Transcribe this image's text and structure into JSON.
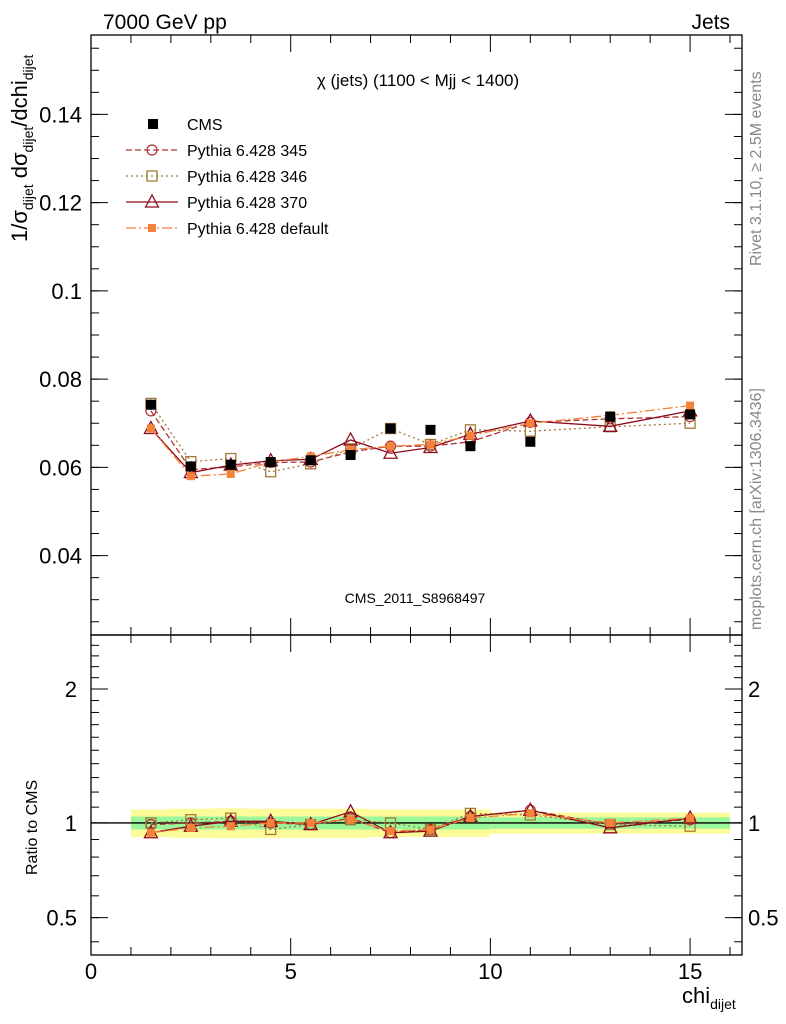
{
  "header": {
    "left": "7000 GeV pp",
    "right": "Jets"
  },
  "side_text": {
    "rivet": "Rivet 3.1.10, ≥ 2.5M events",
    "mcplots": "mcplots.cern.ch [arXiv:1306.3436]"
  },
  "watermark": "CMS_2011_S8968497",
  "colors": {
    "cms": "#000000",
    "p345": "#b2343a",
    "p346": "#a57936",
    "p370": "#8b0c1c",
    "pdef": "#f5823a",
    "band_inner": "#9af79a",
    "band_outer": "#fbfb9a"
  },
  "chart_data": [
    {
      "type": "line",
      "title": "χ (jets) (1100 < Mjj < 1400)",
      "xlabel": "chi_dijet",
      "ylabel": "1/σ_dijet dσ_dijet/dchi_dijet",
      "xlim": [
        0,
        16.3
      ],
      "ylim": [
        0.022,
        0.158
      ],
      "y_ticks": [
        "0.04",
        "0.06",
        "0.08",
        "0.1",
        "0.12",
        "0.14"
      ],
      "legend_position": "top-left",
      "x": [
        1.5,
        2.5,
        3.5,
        4.5,
        5.5,
        6.5,
        7.5,
        8.5,
        9.5,
        11,
        13,
        15
      ],
      "series": [
        {
          "name": "CMS",
          "style": "data",
          "values": [
            0.0742,
            0.0602,
            0.0606,
            0.0612,
            0.0616,
            0.0628,
            0.0688,
            0.0685,
            0.0648,
            0.0658,
            0.0715,
            0.072
          ],
          "errors": [
            0.0012,
            0.001,
            0.001,
            0.001,
            0.001,
            0.001,
            0.001,
            0.001,
            0.001,
            0.001,
            0.001,
            0.001
          ]
        },
        {
          "name": "Pythia 6.428 345",
          "values": [
            0.0728,
            0.0595,
            0.0601,
            0.0611,
            0.0612,
            0.0635,
            0.0648,
            0.0648,
            0.0658,
            0.0702,
            0.071,
            0.0715
          ]
        },
        {
          "name": "Pythia 6.428 346",
          "values": [
            0.0745,
            0.0613,
            0.062,
            0.059,
            0.0608,
            0.0642,
            0.0688,
            0.0652,
            0.0685,
            0.0682,
            0.0692,
            0.07
          ]
        },
        {
          "name": "Pythia 6.428 370",
          "values": [
            0.0688,
            0.0588,
            0.0605,
            0.0615,
            0.0618,
            0.0662,
            0.0632,
            0.0645,
            0.0675,
            0.0705,
            0.0693,
            0.0728
          ]
        },
        {
          "name": "Pythia 6.428 default",
          "values": [
            0.0688,
            0.058,
            0.0585,
            0.0612,
            0.0625,
            0.064,
            0.0648,
            0.0652,
            0.0672,
            0.07,
            0.0718,
            0.074
          ]
        }
      ]
    },
    {
      "type": "line",
      "ylabel": "Ratio to CMS",
      "xlim": [
        0,
        16.3
      ],
      "ylim": [
        0.35,
        2.5
      ],
      "y_ticks": [
        "0.5",
        "1",
        "2"
      ],
      "x_ticks": [
        "0",
        "5",
        "10",
        "15"
      ],
      "xlabel": "chi_dijet",
      "x": [
        1.5,
        2.5,
        3.5,
        4.5,
        5.5,
        6.5,
        7.5,
        8.5,
        9.5,
        11,
        13,
        15
      ],
      "bands": {
        "edges": [
          1,
          2,
          3,
          4,
          5,
          6,
          7,
          8,
          9,
          10,
          12,
          14,
          16
        ],
        "inner": [
          0.04,
          0.04,
          0.04,
          0.04,
          0.04,
          0.04,
          0.04,
          0.04,
          0.04,
          0.035,
          0.035,
          0.035
        ],
        "outer": [
          0.085,
          0.09,
          0.092,
          0.09,
          0.09,
          0.09,
          0.085,
          0.085,
          0.085,
          0.065,
          0.065,
          0.065
        ]
      },
      "series": [
        {
          "name": "Pythia 6.428 345",
          "values": [
            0.99,
            1.0,
            1.01,
            1.0,
            0.99,
            1.03,
            0.94,
            0.96,
            1.04,
            1.08,
            0.99,
            1.02
          ]
        },
        {
          "name": "Pythia 6.428 346",
          "values": [
            1.0,
            1.02,
            1.03,
            0.96,
            0.99,
            1.02,
            1.0,
            0.96,
            1.06,
            1.05,
            0.99,
            0.98
          ]
        },
        {
          "name": "Pythia 6.428 370",
          "values": [
            0.94,
            0.98,
            1.01,
            1.01,
            0.99,
            1.07,
            0.94,
            0.95,
            1.04,
            1.08,
            0.97,
            1.03
          ]
        },
        {
          "name": "Pythia 6.428 default",
          "values": [
            0.94,
            0.97,
            0.98,
            1.0,
            1.0,
            1.02,
            0.95,
            0.96,
            1.03,
            1.06,
            1.0,
            1.03
          ]
        }
      ]
    }
  ]
}
